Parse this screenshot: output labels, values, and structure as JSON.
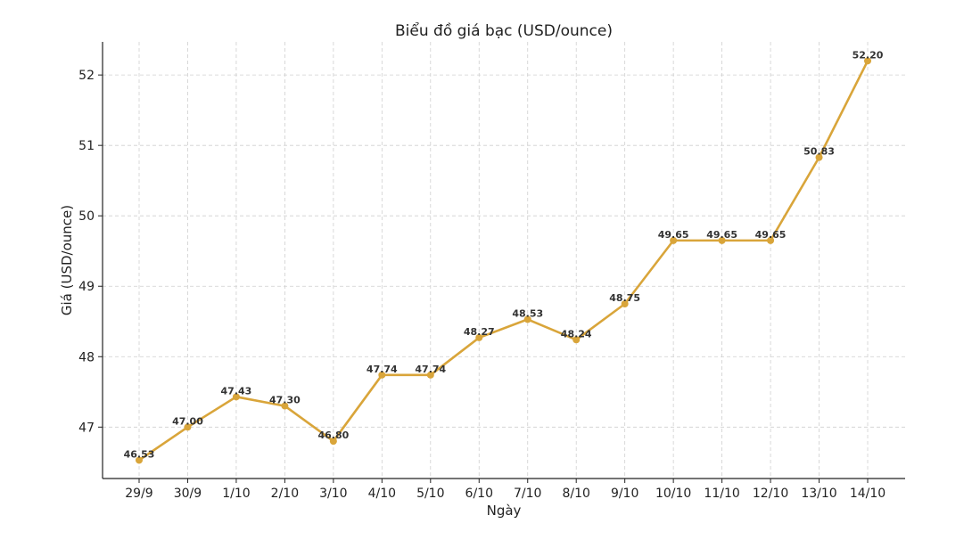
{
  "chart_data": {
    "type": "line",
    "title": "Biểu đồ giá bạc (USD/ounce)",
    "xlabel": "Ngày",
    "ylabel": "Giá (USD/ounce)",
    "categories": [
      "29/9",
      "30/9",
      "1/10",
      "2/10",
      "3/10",
      "4/10",
      "5/10",
      "6/10",
      "7/10",
      "8/10",
      "9/10",
      "10/10",
      "11/10",
      "12/10",
      "13/10",
      "14/10"
    ],
    "series": [
      {
        "values": [
          46.53,
          47.0,
          47.43,
          47.3,
          46.8,
          47.74,
          47.74,
          48.27,
          48.53,
          48.24,
          48.75,
          49.65,
          49.65,
          49.65,
          50.83,
          52.2
        ],
        "labels": [
          "46.53",
          "47.00",
          "47.43",
          "47.30",
          "46.80",
          "47.74",
          "47.74",
          "48.27",
          "48.53",
          "48.24",
          "48.75",
          "49.65",
          "49.65",
          "49.65",
          "50.83",
          "52.20"
        ]
      }
    ],
    "yticks": [
      "47",
      "48",
      "49",
      "50",
      "51",
      "52"
    ],
    "ylim": [
      46.27,
      52.47
    ],
    "grid": true,
    "line_color": "#D9A53A",
    "marker": "circle"
  }
}
